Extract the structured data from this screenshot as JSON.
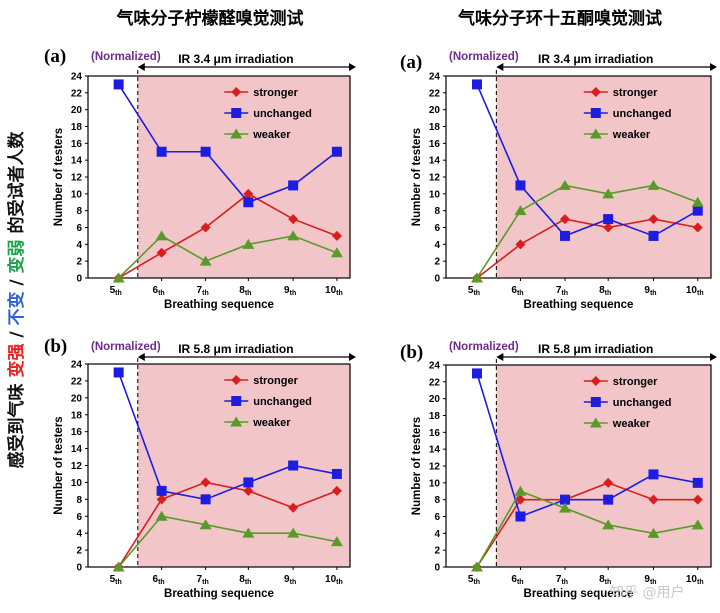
{
  "titles": {
    "left": "气味分子柠檬醛嗅觉测试",
    "right": "气味分子环十五酮嗅觉测试"
  },
  "side_label": [
    {
      "text": "感受到气味 ",
      "color": "#111111"
    },
    {
      "text": "变强",
      "color": "#e8201c"
    },
    {
      "text": " / ",
      "color": "#111111"
    },
    {
      "text": "不变",
      "color": "#2e5fd8"
    },
    {
      "text": " / ",
      "color": "#111111"
    },
    {
      "text": "变弱",
      "color": "#1aa34a"
    },
    {
      "text": " 的受试者人数",
      "color": "#111111"
    }
  ],
  "watermark": "知乎 @用户",
  "colors": {
    "stronger": "#d81e1e",
    "unchanged": "#1d1de0",
    "weaker": "#5a9a2a",
    "irradiation_bg": "#f2c6c9"
  },
  "chart_data": [
    {
      "type": "line",
      "panel_label": "(a)",
      "normalized_label": "(Normalized)",
      "irradiation_label": "IR 3.4 μm irradiation",
      "xlabel": "Breathing sequence",
      "ylabel": "Number of testers",
      "ylim": [
        0,
        24
      ],
      "yticks": [
        0,
        2,
        4,
        6,
        8,
        10,
        12,
        14,
        16,
        18,
        20,
        22,
        24
      ],
      "categories": [
        {
          "n": "5",
          "s": "th"
        },
        {
          "n": "6",
          "s": "th"
        },
        {
          "n": "7",
          "s": "th"
        },
        {
          "n": "8",
          "s": "th"
        },
        {
          "n": "9",
          "s": "th"
        },
        {
          "n": "10",
          "s": "th"
        }
      ],
      "series": [
        {
          "name": "stronger",
          "values": [
            0,
            3,
            6,
            10,
            7,
            5
          ]
        },
        {
          "name": "unchanged",
          "values": [
            23,
            15,
            15,
            9,
            11,
            15
          ]
        },
        {
          "name": "weaker",
          "values": [
            0,
            5,
            2,
            4,
            5,
            3
          ]
        }
      ]
    },
    {
      "type": "line",
      "panel_label": "(a)",
      "normalized_label": "(Normalized)",
      "irradiation_label": "IR 3.4 μm irradiation",
      "xlabel": "Breathing sequence",
      "ylabel": "Number of testers",
      "ylim": [
        0,
        24
      ],
      "yticks": [
        0,
        2,
        4,
        6,
        8,
        10,
        12,
        14,
        16,
        18,
        20,
        22,
        24
      ],
      "categories": [
        {
          "n": "5",
          "s": "th"
        },
        {
          "n": "6",
          "s": "th"
        },
        {
          "n": "7",
          "s": "th"
        },
        {
          "n": "8",
          "s": "th"
        },
        {
          "n": "9",
          "s": "th"
        },
        {
          "n": "10",
          "s": "th"
        }
      ],
      "series": [
        {
          "name": "stronger",
          "values": [
            0,
            4,
            7,
            6,
            7,
            6
          ]
        },
        {
          "name": "unchanged",
          "values": [
            23,
            11,
            5,
            7,
            5,
            8
          ]
        },
        {
          "name": "weaker",
          "values": [
            0,
            8,
            11,
            10,
            11,
            9
          ]
        }
      ]
    },
    {
      "type": "line",
      "panel_label": "(b)",
      "normalized_label": "(Normalized)",
      "irradiation_label": "IR 5.8 μm irradiation",
      "xlabel": "Breathing sequence",
      "ylabel": "Number of testers",
      "ylim": [
        0,
        24
      ],
      "yticks": [
        0,
        2,
        4,
        6,
        8,
        10,
        12,
        14,
        16,
        18,
        20,
        22,
        24
      ],
      "categories": [
        {
          "n": "5",
          "s": "th"
        },
        {
          "n": "6",
          "s": "th"
        },
        {
          "n": "7",
          "s": "th"
        },
        {
          "n": "8",
          "s": "th"
        },
        {
          "n": "9",
          "s": "th"
        },
        {
          "n": "10",
          "s": "th"
        }
      ],
      "series": [
        {
          "name": "stronger",
          "values": [
            0,
            8,
            10,
            9,
            7,
            9
          ]
        },
        {
          "name": "unchanged",
          "values": [
            23,
            9,
            8,
            10,
            12,
            11
          ]
        },
        {
          "name": "weaker",
          "values": [
            0,
            6,
            5,
            4,
            4,
            3
          ]
        }
      ]
    },
    {
      "type": "line",
      "panel_label": "(b)",
      "normalized_label": "(Normalized)",
      "irradiation_label": "IR 5.8 μm irradiation",
      "xlabel": "Breathing sequence",
      "ylabel": "Number of testers",
      "ylim": [
        0,
        24
      ],
      "yticks": [
        0,
        2,
        4,
        6,
        8,
        10,
        12,
        14,
        16,
        18,
        20,
        22,
        24
      ],
      "categories": [
        {
          "n": "5",
          "s": "th"
        },
        {
          "n": "6",
          "s": "th"
        },
        {
          "n": "7",
          "s": "th"
        },
        {
          "n": "8",
          "s": "th"
        },
        {
          "n": "9",
          "s": "th"
        },
        {
          "n": "10",
          "s": "th"
        }
      ],
      "series": [
        {
          "name": "stronger",
          "values": [
            0,
            8,
            8,
            10,
            8,
            8
          ]
        },
        {
          "name": "unchanged",
          "values": [
            23,
            6,
            8,
            8,
            11,
            10
          ]
        },
        {
          "name": "weaker",
          "values": [
            0,
            9,
            7,
            5,
            4,
            5
          ]
        }
      ]
    }
  ]
}
